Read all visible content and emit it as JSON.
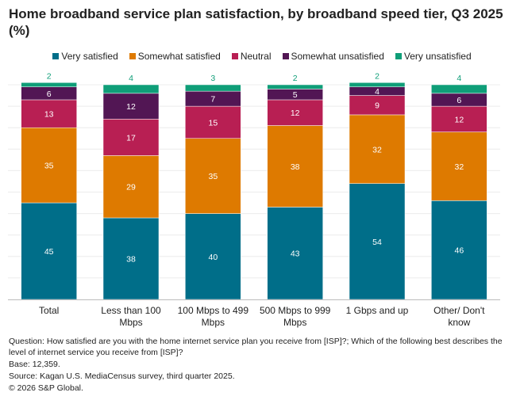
{
  "chart_data": {
    "type": "bar",
    "stacked": true,
    "title": "Home broadband service plan satisfaction, by broadband speed tier, Q3 2025 (%)",
    "categories": [
      "Total",
      "Less than 100 Mbps",
      "100 Mbps to 499 Mbps",
      "500 Mbps to 999 Mbps",
      "1 Gbps and up",
      "Other/ Don't know"
    ],
    "series": [
      {
        "name": "Very satisfied",
        "color": "#006e89",
        "values": [
          45,
          38,
          40,
          43,
          54,
          46
        ]
      },
      {
        "name": "Somewhat satisfied",
        "color": "#de7a00",
        "values": [
          35,
          29,
          35,
          38,
          32,
          32
        ]
      },
      {
        "name": "Neutral",
        "color": "#b81f53",
        "values": [
          13,
          17,
          15,
          12,
          9,
          12
        ]
      },
      {
        "name": "Somewhat unsatisfied",
        "color": "#521654",
        "values": [
          6,
          12,
          7,
          5,
          4,
          6
        ]
      },
      {
        "name": "Very unsatisfied",
        "color": "#0f9e78",
        "values": [
          2,
          4,
          3,
          2,
          2,
          4
        ]
      }
    ],
    "ylim": [
      0,
      100
    ],
    "grid": true,
    "legend": "top"
  },
  "notes": {
    "question": "Question: How satisfied are you with the home internet service plan you receive from [ISP]?; Which of the following best describes the level of internet service you receive from [ISP]?",
    "base": "Base: 12,359.",
    "source": "Source: Kagan U.S. MediaCensus survey, third quarter 2025.",
    "copyright": "© 2026 S&P Global."
  }
}
